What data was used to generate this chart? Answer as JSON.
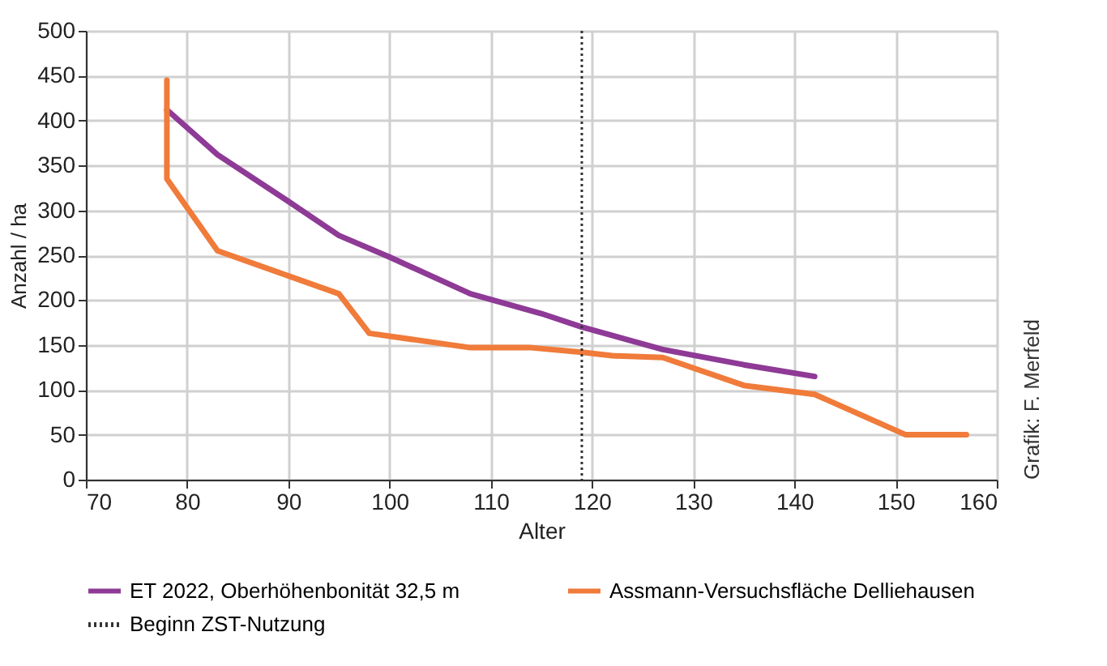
{
  "chart_data": {
    "type": "line",
    "xlabel": "Alter",
    "ylabel": "Anzahl / ha",
    "xlim": [
      70,
      160
    ],
    "xticks": [
      70,
      80,
      90,
      100,
      110,
      120,
      130,
      140,
      150,
      160
    ],
    "ylim": [
      0,
      500
    ],
    "yticks": [
      0,
      50,
      100,
      150,
      200,
      250,
      300,
      350,
      400,
      450,
      500
    ],
    "grid": true,
    "legend": "bottom",
    "marker": "none",
    "line_style": "solid",
    "series": [
      {
        "name": "ET 2022, Oberhöhenbonität 32,5 m",
        "color": "#8e3a96",
        "x": [
          78,
          83,
          90,
          95,
          100,
          108,
          115,
          119,
          127,
          135,
          142
        ],
        "values": [
          412,
          362,
          310,
          272,
          248,
          207,
          185,
          170,
          145,
          128,
          115
        ]
      },
      {
        "name": "Assmann-Versuchsfläche Delliehausen",
        "color": "#f07b3a",
        "x": [
          78,
          78,
          83,
          95,
          98,
          108,
          114,
          119,
          122,
          127,
          135,
          142,
          151,
          157
        ],
        "values": [
          445,
          335,
          255,
          207,
          163,
          147,
          147,
          142,
          138,
          136,
          105,
          95,
          50,
          50
        ]
      }
    ],
    "ref_lines": [
      {
        "axis": "x",
        "value": 119,
        "label": "Beginn ZST-Nutzung",
        "color": "#333333",
        "line_style": "dotted"
      }
    ],
    "annotations": [
      "Grafik: F. Merfeld"
    ]
  }
}
